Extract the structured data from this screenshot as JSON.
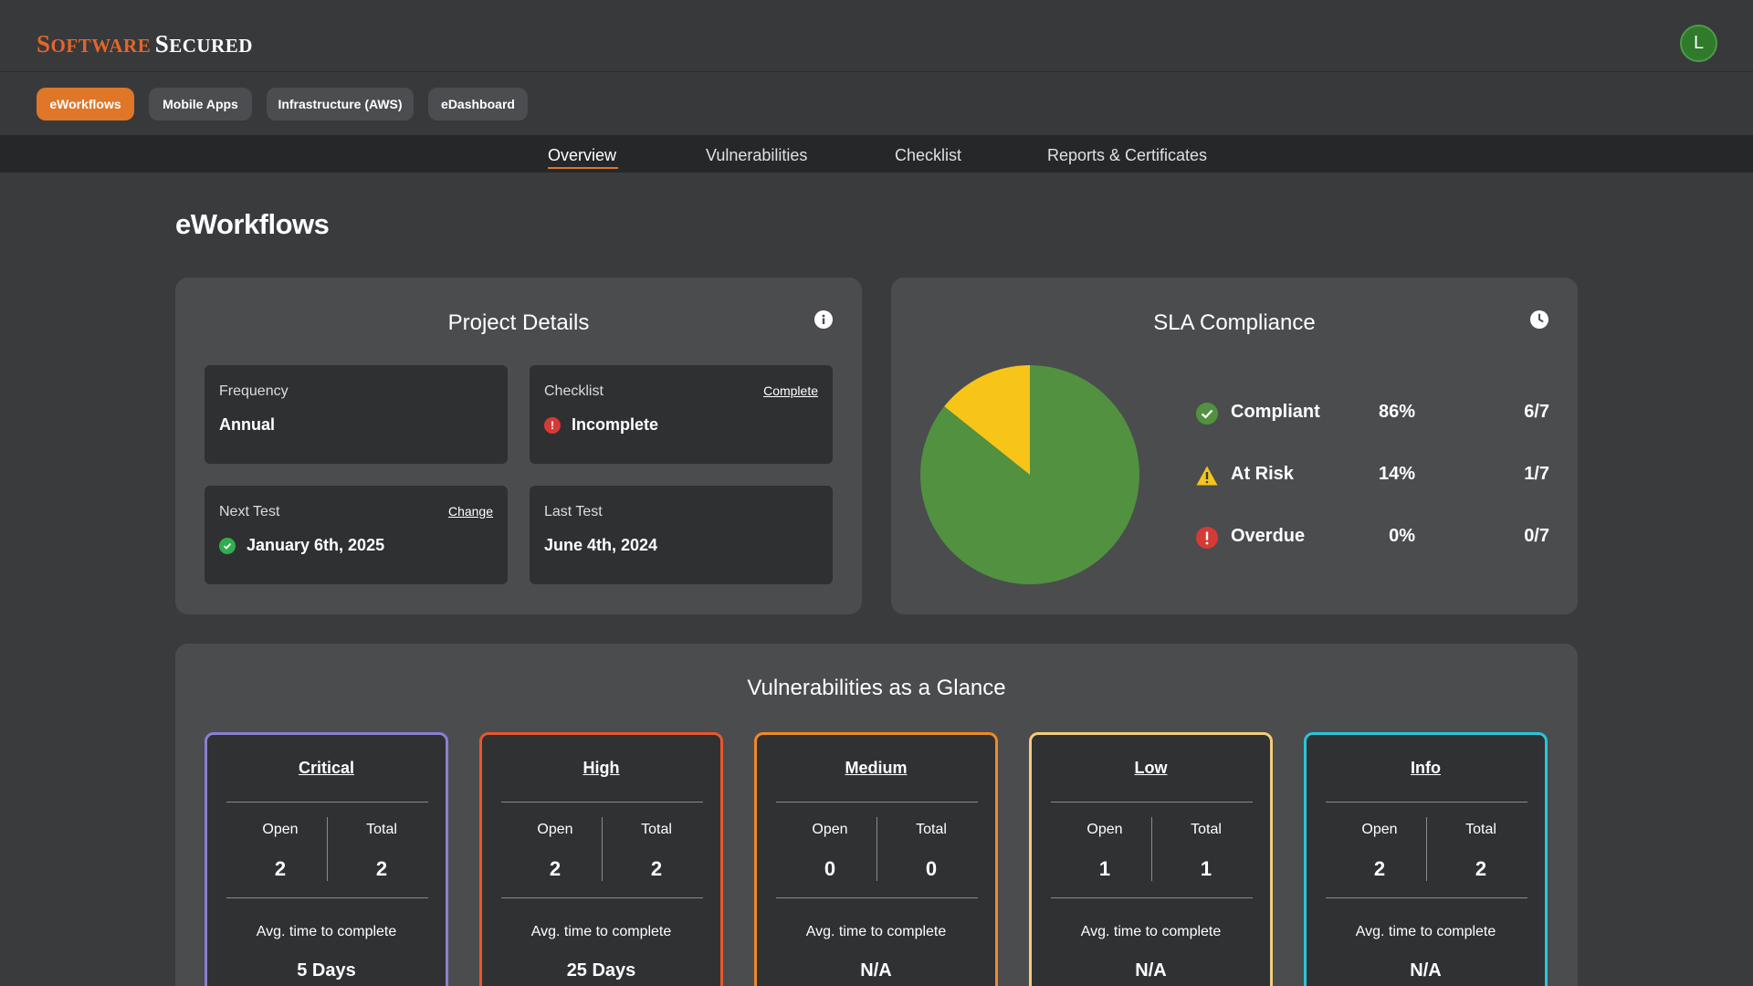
{
  "brand": {
    "word1_cap": "S",
    "word1_rest": "OFTWARE",
    "word2_cap": "S",
    "word2_rest": "ECURED",
    "color_accent": "#e4662a"
  },
  "user": {
    "avatar_initial": "L",
    "avatar_color": "#2f7a2b"
  },
  "project_tabs": [
    {
      "label": "eWorkflows",
      "active": true
    },
    {
      "label": "Mobile Apps",
      "active": false
    },
    {
      "label": "Infrastructure (AWS)",
      "active": false
    },
    {
      "label": "eDashboard",
      "active": false
    }
  ],
  "nav_tabs": [
    {
      "label": "Overview",
      "active": true
    },
    {
      "label": "Vulnerabilities",
      "active": false
    },
    {
      "label": "Checklist",
      "active": false
    },
    {
      "label": "Reports & Certificates",
      "active": false
    }
  ],
  "page_title": "eWorkflows",
  "project_details": {
    "title": "Project Details",
    "frequency": {
      "label": "Frequency",
      "value": "Annual"
    },
    "checklist": {
      "label": "Checklist",
      "action": "Complete",
      "value": "Incomplete",
      "status_icon": "error-circle-icon"
    },
    "next_test": {
      "label": "Next Test",
      "action": "Change",
      "value": "January 6th, 2025",
      "status_icon": "check-circle-icon"
    },
    "last_test": {
      "label": "Last Test",
      "value": "June 4th, 2024"
    }
  },
  "sla": {
    "title": "SLA Compliance",
    "rows": [
      {
        "name": "Compliant",
        "percent": "86%",
        "fraction": "6/7",
        "icon": "check-circle-icon",
        "color": "#519140"
      },
      {
        "name": "At Risk",
        "percent": "14%",
        "fraction": "1/7",
        "icon": "warning-triangle-icon",
        "color": "#f6c518"
      },
      {
        "name": "Overdue",
        "percent": "0%",
        "fraction": "0/7",
        "icon": "error-circle-icon",
        "color": "#d63a36"
      }
    ]
  },
  "chart_data": {
    "type": "pie",
    "categories": [
      "Compliant",
      "At Risk",
      "Overdue"
    ],
    "values": [
      6,
      1,
      0
    ],
    "colors": [
      "#519140",
      "#f6c518",
      "#d63a36"
    ]
  },
  "vulns": {
    "title": "Vulnerabilities as a Glance",
    "open_label": "Open",
    "total_label": "Total",
    "avg_label": "Avg. time to complete",
    "cards": [
      {
        "severity": "Critical",
        "open": "2",
        "total": "2",
        "avg": "5 Days",
        "color": "#8b7ed1"
      },
      {
        "severity": "High",
        "open": "2",
        "total": "2",
        "avg": "25 Days",
        "color": "#e8572c"
      },
      {
        "severity": "Medium",
        "open": "0",
        "total": "0",
        "avg": "N/A",
        "color": "#ef8a27"
      },
      {
        "severity": "Low",
        "open": "1",
        "total": "1",
        "avg": "N/A",
        "color": "#f2cd7c"
      },
      {
        "severity": "Info",
        "open": "2",
        "total": "2",
        "avg": "N/A",
        "color": "#28c6dc"
      }
    ]
  }
}
